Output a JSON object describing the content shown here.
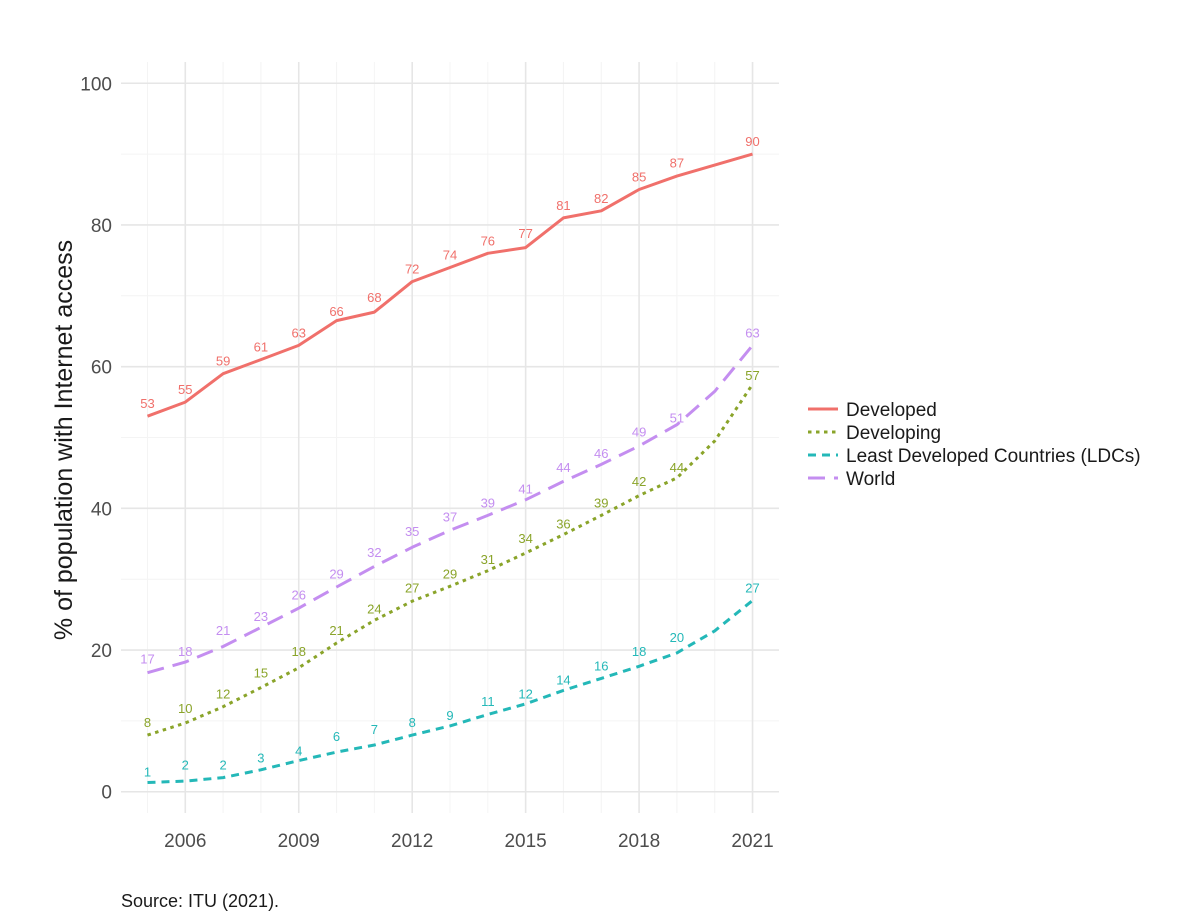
{
  "chart_data": {
    "type": "line",
    "xlabel": "",
    "ylabel": "% of population with Internet access",
    "x": [
      2005,
      2006,
      2007,
      2008,
      2009,
      2010,
      2011,
      2012,
      2013,
      2014,
      2015,
      2016,
      2017,
      2018,
      2019,
      2020,
      2021
    ],
    "xticks": [
      "2006",
      "2009",
      "2012",
      "2015",
      "2018",
      "2021"
    ],
    "yticks": [
      "0",
      "20",
      "40",
      "60",
      "80",
      "100"
    ],
    "xlim": [
      2004.3,
      2021.7
    ],
    "ylim": [
      -3,
      103
    ],
    "grid": true,
    "legend_position": "right",
    "series": [
      {
        "name": "Developed",
        "color": "#f0706b",
        "dash": "solid",
        "values": [
          53,
          55,
          59,
          61,
          63,
          66,
          68,
          72,
          74,
          76,
          77,
          81,
          82,
          85,
          87,
          null,
          90
        ]
      },
      {
        "name": "Developing",
        "color": "#8aa42a",
        "dash": "dotted",
        "values": [
          8,
          10,
          12,
          15,
          18,
          21,
          24,
          27,
          29,
          31,
          34,
          36,
          39,
          42,
          44,
          null,
          57
        ]
      },
      {
        "name": "Least Developed Countries (LDCs)",
        "color": "#24b8b8",
        "dash": "dashed",
        "values": [
          1,
          2,
          2,
          3,
          4,
          6,
          7,
          8,
          9,
          11,
          12,
          14,
          16,
          18,
          20,
          null,
          27
        ]
      },
      {
        "name": "World",
        "color": "#c48ef0",
        "dash": "longdash",
        "values": [
          17,
          18,
          21,
          23,
          26,
          29,
          32,
          35,
          37,
          39,
          41,
          44,
          46,
          49,
          51,
          null,
          63
        ]
      }
    ],
    "line_paths": [
      {
        "series": "Developed",
        "points": [
          [
            2005,
            53
          ],
          [
            2006,
            55
          ],
          [
            2007,
            59
          ],
          [
            2008,
            61
          ],
          [
            2009,
            63
          ],
          [
            2010,
            66.5
          ],
          [
            2011,
            67.7
          ],
          [
            2012,
            72
          ],
          [
            2013,
            74
          ],
          [
            2014,
            76
          ],
          [
            2015,
            76.8
          ],
          [
            2016,
            81
          ],
          [
            2017,
            82
          ],
          [
            2018,
            85
          ],
          [
            2019,
            86.9
          ],
          [
            2021,
            90
          ]
        ]
      },
      {
        "series": "Developing",
        "points": [
          [
            2005,
            8
          ],
          [
            2006,
            9.7
          ],
          [
            2007,
            12
          ],
          [
            2008,
            14.7
          ],
          [
            2009,
            17.5
          ],
          [
            2010,
            21
          ],
          [
            2011,
            24.2
          ],
          [
            2012,
            26.9
          ],
          [
            2013,
            29
          ],
          [
            2014,
            31.2
          ],
          [
            2015,
            33.7
          ],
          [
            2016,
            36.3
          ],
          [
            2017,
            39
          ],
          [
            2018,
            41.8
          ],
          [
            2019,
            44.3
          ],
          [
            2020,
            49.5
          ],
          [
            2021,
            57.5
          ]
        ]
      },
      {
        "series": "Least Developed Countries (LDCs)",
        "points": [
          [
            2005,
            1.3
          ],
          [
            2006,
            1.5
          ],
          [
            2007,
            2
          ],
          [
            2008,
            3.1
          ],
          [
            2009,
            4.4
          ],
          [
            2010,
            5.6
          ],
          [
            2011,
            6.6
          ],
          [
            2012,
            8
          ],
          [
            2013,
            9.3
          ],
          [
            2014,
            10.9
          ],
          [
            2015,
            12.4
          ],
          [
            2016,
            14.3
          ],
          [
            2017,
            16
          ],
          [
            2018,
            17.7
          ],
          [
            2019,
            19.6
          ],
          [
            2020,
            22.7
          ],
          [
            2021,
            27
          ]
        ]
      },
      {
        "series": "World",
        "points": [
          [
            2005,
            16.8
          ],
          [
            2006,
            18.3
          ],
          [
            2007,
            20.5
          ],
          [
            2008,
            23.2
          ],
          [
            2009,
            25.9
          ],
          [
            2010,
            28.9
          ],
          [
            2011,
            31.8
          ],
          [
            2012,
            34.5
          ],
          [
            2013,
            36.9
          ],
          [
            2014,
            39
          ],
          [
            2015,
            41.2
          ],
          [
            2016,
            43.8
          ],
          [
            2017,
            46.2
          ],
          [
            2018,
            48.8
          ],
          [
            2019,
            51.8
          ],
          [
            2020,
            56.5
          ],
          [
            2021,
            63
          ]
        ]
      }
    ]
  },
  "source": "Source: ITU (2021)."
}
